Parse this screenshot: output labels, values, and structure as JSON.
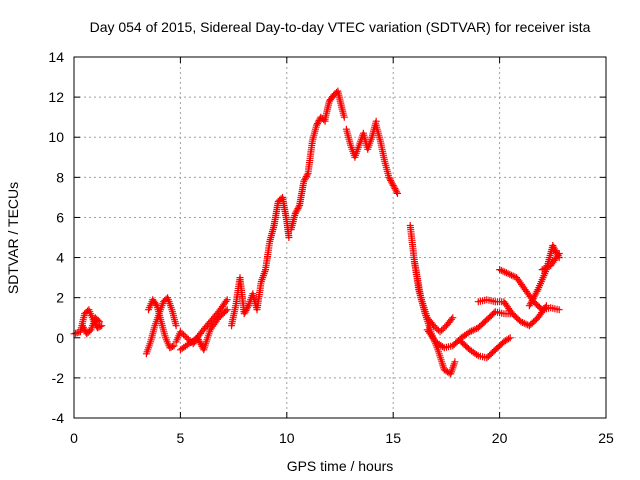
{
  "chart_data": {
    "type": "scatter",
    "title": "Day 054 of 2015, Sidereal Day-to-day VTEC variation (SDTVAR) for receiver ista",
    "xlabel": "GPS time / hours",
    "ylabel": "SDTVAR / TECUs",
    "xlim": [
      0,
      25
    ],
    "ylim": [
      -4,
      14
    ],
    "xticks": [
      "0",
      "5",
      "10",
      "15",
      "20",
      "25"
    ],
    "yticks": [
      "-4",
      "-2",
      "0",
      "2",
      "4",
      "6",
      "8",
      "10",
      "12",
      "14"
    ],
    "grid": true,
    "marker": "+",
    "series": [
      {
        "name": "SDTVAR",
        "color": "#ff0000",
        "tracks": [
          {
            "x": [
              0.0,
              0.3,
              0.5,
              0.7,
              0.9,
              1.1,
              1.3
            ],
            "y": [
              0.2,
              0.3,
              1.2,
              1.4,
              0.9,
              0.5,
              0.6
            ]
          },
          {
            "x": [
              0.4,
              0.6,
              0.8,
              1.0,
              1.2
            ],
            "y": [
              0.6,
              0.2,
              0.4,
              1.0,
              0.8
            ]
          },
          {
            "x": [
              3.4,
              3.6,
              3.8,
              4.0,
              4.2,
              4.4,
              4.6,
              4.8
            ],
            "y": [
              -0.8,
              -0.2,
              0.6,
              1.2,
              1.8,
              2.0,
              1.4,
              0.6
            ]
          },
          {
            "x": [
              3.5,
              3.7,
              3.9,
              4.1,
              4.3,
              4.5,
              4.7
            ],
            "y": [
              1.4,
              1.9,
              1.6,
              0.8,
              0.0,
              -0.5,
              -0.4
            ]
          },
          {
            "x": [
              4.8,
              5.0,
              5.3,
              5.6,
              6.0,
              6.4,
              6.8,
              7.2
            ],
            "y": [
              -0.2,
              0.3,
              0.0,
              -0.3,
              0.3,
              0.8,
              1.3,
              1.9
            ]
          },
          {
            "x": [
              5.0,
              5.4,
              5.8,
              6.1,
              6.4,
              6.8,
              7.2
            ],
            "y": [
              -0.6,
              -0.3,
              0.0,
              -0.6,
              0.4,
              1.0,
              1.4
            ]
          },
          {
            "x": [
              7.4,
              7.6,
              7.8,
              8.0,
              8.2,
              8.4,
              8.6,
              8.8,
              9.0
            ],
            "y": [
              0.6,
              1.6,
              3.0,
              1.2,
              1.6,
              2.2,
              1.4,
              2.8,
              3.4
            ]
          },
          {
            "x": [
              9.0,
              9.2,
              9.4,
              9.6,
              9.8,
              10.0,
              10.1
            ],
            "y": [
              3.4,
              4.8,
              5.6,
              6.8,
              7.0,
              5.8,
              5.0
            ]
          },
          {
            "x": [
              10.2,
              10.4,
              10.6,
              10.8,
              11.0,
              11.2,
              11.4,
              11.6,
              11.8
            ],
            "y": [
              5.4,
              6.2,
              6.6,
              7.8,
              8.2,
              9.8,
              10.6,
              11.0,
              10.8
            ]
          },
          {
            "x": [
              11.8,
              12.0,
              12.2,
              12.4,
              12.6,
              12.7
            ],
            "y": [
              10.9,
              11.8,
              12.1,
              12.3,
              11.4,
              11.0
            ]
          },
          {
            "x": [
              12.8,
              13.0,
              13.2,
              13.4,
              13.6,
              13.8,
              14.0,
              14.2
            ],
            "y": [
              10.4,
              9.6,
              9.0,
              9.6,
              10.2,
              9.4,
              10.0,
              10.8
            ]
          },
          {
            "x": [
              14.2,
              14.4,
              14.6,
              14.8,
              15.0,
              15.2
            ],
            "y": [
              10.6,
              9.8,
              8.8,
              8.0,
              7.6,
              7.2
            ]
          },
          {
            "x": [
              15.8,
              16.0,
              16.2,
              16.5,
              16.8,
              17.1,
              17.4,
              17.7,
              17.9
            ],
            "y": [
              5.6,
              3.8,
              2.4,
              1.2,
              0.2,
              -0.6,
              -1.6,
              -1.8,
              -1.2
            ]
          },
          {
            "x": [
              16.0,
              16.3,
              16.6,
              16.9,
              17.2,
              17.5,
              17.8
            ],
            "y": [
              3.8,
              2.0,
              1.0,
              0.6,
              0.3,
              0.6,
              1.0
            ]
          },
          {
            "x": [
              16.6,
              17.0,
              17.4,
              17.8,
              18.2,
              18.6,
              19.0,
              19.4,
              19.8,
              20.2,
              20.5
            ],
            "y": [
              0.4,
              -0.2,
              -0.5,
              -0.4,
              0.0,
              0.3,
              0.5,
              0.9,
              1.3,
              1.2,
              1.2
            ]
          },
          {
            "x": [
              18.2,
              18.6,
              19.0,
              19.4,
              19.8,
              20.2,
              20.5
            ],
            "y": [
              -0.2,
              -0.6,
              -0.9,
              -1.0,
              -0.6,
              -0.2,
              0.0
            ]
          },
          {
            "x": [
              19.0,
              19.4,
              19.8,
              20.2,
              20.6,
              21.0,
              21.4,
              21.8,
              22.2
            ],
            "y": [
              1.8,
              1.9,
              1.8,
              1.8,
              1.2,
              0.8,
              0.6,
              1.0,
              1.6
            ]
          },
          {
            "x": [
              20.0,
              20.4,
              20.8,
              21.2,
              21.6,
              22.0,
              22.4,
              22.8
            ],
            "y": [
              3.4,
              3.2,
              3.0,
              2.4,
              1.8,
              1.4,
              1.5,
              1.4
            ]
          },
          {
            "x": [
              21.4,
              21.8,
              22.2,
              22.5,
              22.8
            ],
            "y": [
              1.6,
              2.4,
              3.4,
              4.6,
              4.0
            ]
          },
          {
            "x": [
              22.0,
              22.4,
              22.8
            ],
            "y": [
              3.4,
              3.6,
              4.2
            ]
          }
        ]
      }
    ]
  }
}
